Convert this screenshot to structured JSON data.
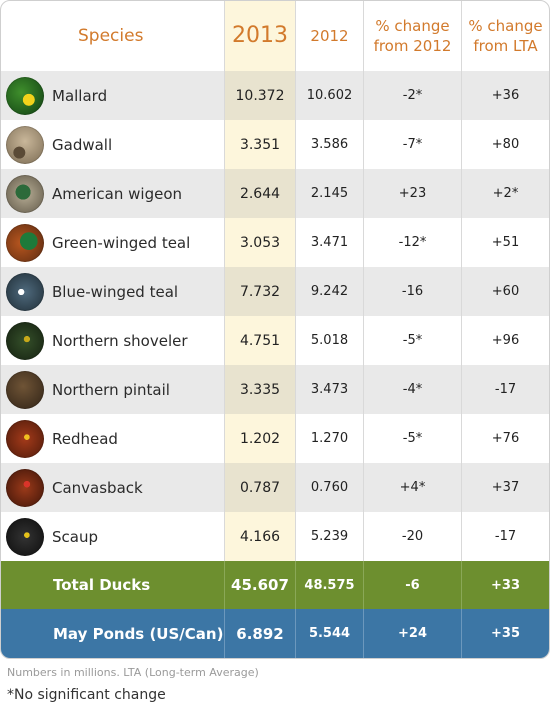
{
  "header": {
    "species": "Species",
    "year_current": "2013",
    "year_prev": "2012",
    "pct_change_prev": "% change from 2012",
    "pct_change_lta": "% change from LTA"
  },
  "colors": {
    "header_text": "#d27a2c",
    "current_year_col": "#fdf6dc",
    "total_row": "#6d8f2f",
    "ponds_row": "#3c76a5"
  },
  "rows": [
    {
      "species": "Mallard",
      "icon": "mallard-icon",
      "y2013": "10.372",
      "y2012": "10.602",
      "chg2012": "-2*",
      "chglta": "+36"
    },
    {
      "species": "Gadwall",
      "icon": "gadwall-icon",
      "y2013": "3.351",
      "y2012": "3.586",
      "chg2012": "-7*",
      "chglta": "+80"
    },
    {
      "species": "American wigeon",
      "icon": "american-wigeon-icon",
      "y2013": "2.644",
      "y2012": "2.145",
      "chg2012": "+23",
      "chglta": "+2*"
    },
    {
      "species": "Green-winged teal",
      "icon": "green-winged-teal-icon",
      "y2013": "3.053",
      "y2012": "3.471",
      "chg2012": "-12*",
      "chglta": "+51"
    },
    {
      "species": "Blue-winged teal",
      "icon": "blue-winged-teal-icon",
      "y2013": "7.732",
      "y2012": "9.242",
      "chg2012": "-16",
      "chglta": "+60"
    },
    {
      "species": "Northern shoveler",
      "icon": "northern-shoveler-icon",
      "y2013": "4.751",
      "y2012": "5.018",
      "chg2012": "-5*",
      "chglta": "+96"
    },
    {
      "species": "Northern pintail",
      "icon": "northern-pintail-icon",
      "y2013": "3.335",
      "y2012": "3.473",
      "chg2012": "-4*",
      "chglta": "-17"
    },
    {
      "species": "Redhead",
      "icon": "redhead-icon",
      "y2013": "1.202",
      "y2012": "1.270",
      "chg2012": "-5*",
      "chglta": "+76"
    },
    {
      "species": "Canvasback",
      "icon": "canvasback-icon",
      "y2013": "0.787",
      "y2012": "0.760",
      "chg2012": "+4*",
      "chglta": "+37"
    },
    {
      "species": "Scaup",
      "icon": "scaup-icon",
      "y2013": "4.166",
      "y2012": "5.239",
      "chg2012": "-20",
      "chglta": "-17"
    }
  ],
  "total": {
    "label": "Total Ducks",
    "y2013": "45.607",
    "y2012": "48.575",
    "chg2012": "-6",
    "chglta": "+33"
  },
  "ponds": {
    "label": "May Ponds (US/Can)",
    "y2013": "6.892",
    "y2012": "5.544",
    "chg2012": "+24",
    "chglta": "+35"
  },
  "notes": {
    "units": "Numbers in millions. LTA (Long-term Average)",
    "asterisk": "*No significant change"
  }
}
